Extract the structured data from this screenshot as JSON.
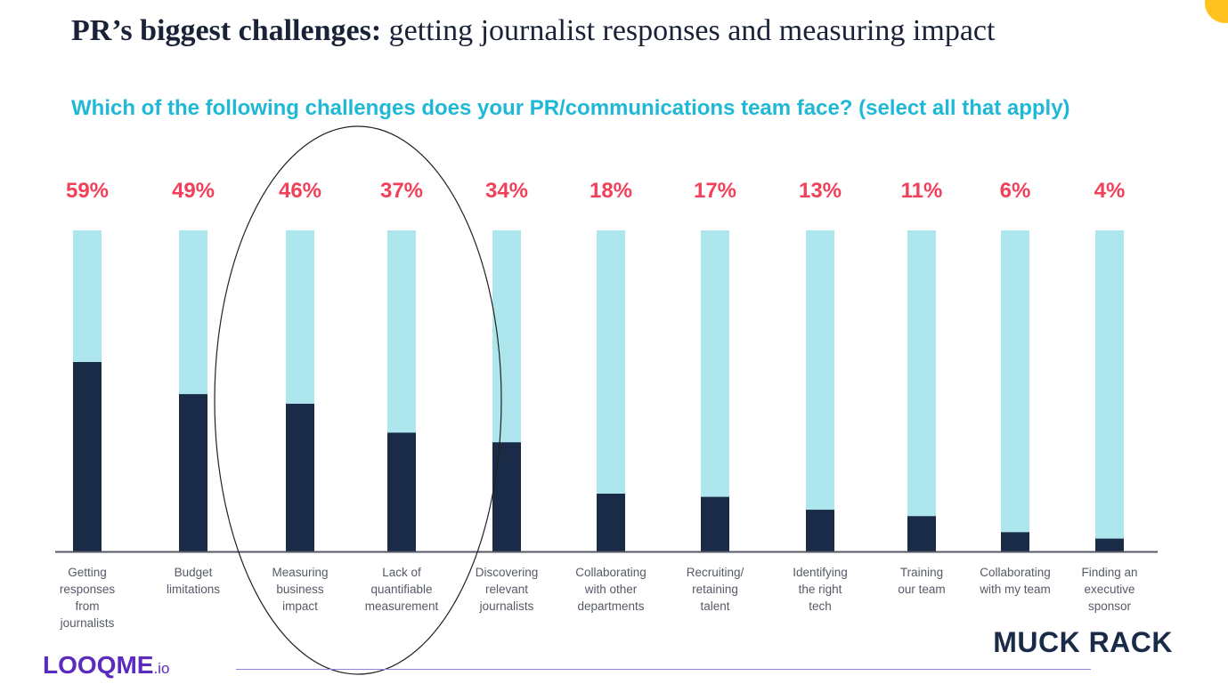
{
  "title": {
    "bold": "PR’s biggest challenges:",
    "rest": "getting journalist responses and measuring impact"
  },
  "subtitle": "Which of the following challenges does your PR/communications team face? (select all that apply)",
  "chart_data": {
    "type": "bar",
    "categories": [
      [
        "Getting",
        "responses",
        "from",
        "journalists"
      ],
      [
        "Budget",
        "limitations"
      ],
      [
        "Measuring",
        "business",
        "impact"
      ],
      [
        "Lack of",
        "quantifiable",
        "measurement"
      ],
      [
        "Discovering",
        "relevant",
        "journalists"
      ],
      [
        "Collaborating",
        "with other",
        "departments"
      ],
      [
        "Recruiting/",
        "retaining",
        "talent"
      ],
      [
        "Identifying",
        "the right",
        "tech"
      ],
      [
        "Training",
        "our team"
      ],
      [
        "Collaborating",
        "with my team"
      ],
      [
        "Finding an",
        "executive",
        "sponsor"
      ]
    ],
    "values": [
      59,
      49,
      46,
      37,
      34,
      18,
      17,
      13,
      11,
      6,
      4
    ],
    "labels": [
      "59%",
      "49%",
      "46%",
      "37%",
      "34%",
      "18%",
      "17%",
      "13%",
      "11%",
      "6%",
      "4%"
    ],
    "ylim": [
      0,
      100
    ],
    "highlighted_categories": [
      2,
      3
    ],
    "colors": {
      "value_fill": "#1a2b48",
      "track_fill": "#aee6ee",
      "value_label": "#f0405a",
      "highlight_outline": "#222222"
    }
  },
  "brand": {
    "muck_rack": "MUCK RACK",
    "looqme_main": "LOOQME",
    "looqme_suffix": ".io"
  }
}
